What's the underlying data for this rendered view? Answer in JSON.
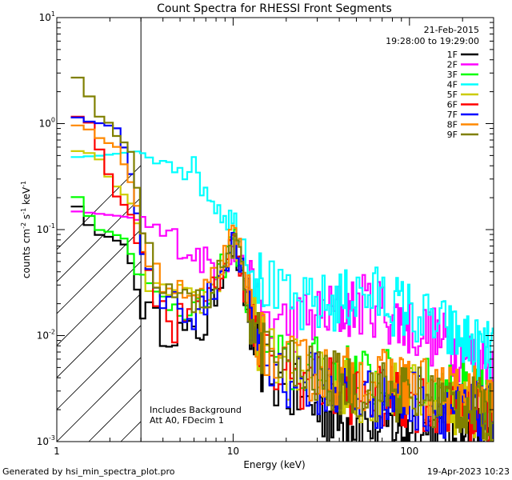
{
  "chart_data": {
    "type": "line",
    "title": "Count Spectra for RHESSI Front Segments",
    "xlabel": "Energy (keV)",
    "ylabel_parts": [
      "counts cm",
      "-2",
      " s",
      "-1",
      " keV",
      "-1"
    ],
    "x_scale": "log",
    "y_scale": "log",
    "xlim": [
      1,
      300
    ],
    "ylim": [
      0.001,
      10
    ],
    "x_ticks": [
      {
        "value": 1,
        "label": "1"
      },
      {
        "value": 10,
        "label": "10"
      },
      {
        "value": 100,
        "label": "100"
      }
    ],
    "y_ticks": [
      {
        "value": 10,
        "base": "10",
        "exp": "1"
      },
      {
        "value": 1,
        "base": "10",
        "exp": "0"
      },
      {
        "value": 0.1,
        "base": "10",
        "exp": "-1"
      },
      {
        "value": 0.01,
        "base": "10",
        "exp": "-2"
      },
      {
        "value": 0.001,
        "base": "10",
        "exp": "-3"
      }
    ],
    "date": "21-Feb-2015",
    "time_range": "19:28:00 to 19:29:00",
    "hatched_below_keV": 3,
    "notes": [
      "Includes Background",
      "Att A0, FDecim 1"
    ],
    "series": [
      {
        "name": "1F",
        "color": "#000000",
        "points": [
          [
            1.2,
            0.22
          ],
          [
            1.4,
            0.13
          ],
          [
            1.7,
            0.09
          ],
          [
            2.0,
            0.085
          ],
          [
            2.5,
            0.07
          ],
          [
            2.8,
            0.03
          ],
          [
            3.0,
            0.02
          ],
          [
            3.5,
            0.015
          ],
          [
            4.0,
            0.011
          ],
          [
            5.0,
            0.011
          ],
          [
            6.0,
            0.01
          ],
          [
            7.0,
            0.012
          ],
          [
            8.0,
            0.025
          ],
          [
            9.0,
            0.05
          ],
          [
            10.0,
            0.07
          ],
          [
            11.0,
            0.04
          ],
          [
            12.0,
            0.015
          ],
          [
            14.0,
            0.006
          ],
          [
            17.0,
            0.004
          ],
          [
            20.0,
            0.003
          ],
          [
            25.0,
            0.0025
          ],
          [
            30.0,
            0.002
          ],
          [
            40.0,
            0.0016
          ],
          [
            50.0,
            0.0015
          ],
          [
            70.0,
            0.0014
          ],
          [
            100.0,
            0.0013
          ],
          [
            150.0,
            0.0012
          ],
          [
            200.0,
            0.0012
          ],
          [
            250.0,
            0.0012
          ],
          [
            300.0,
            0.0011
          ]
        ]
      },
      {
        "name": "2F",
        "color": "#ff00ff",
        "points": [
          [
            1.2,
            0.15
          ],
          [
            1.5,
            0.145
          ],
          [
            1.8,
            0.14
          ],
          [
            2.2,
            0.135
          ],
          [
            2.6,
            0.13
          ],
          [
            3.0,
            0.12
          ],
          [
            3.5,
            0.1
          ],
          [
            4.0,
            0.09
          ],
          [
            5.0,
            0.075
          ],
          [
            6.0,
            0.06
          ],
          [
            7.0,
            0.05
          ],
          [
            8.0,
            0.045
          ],
          [
            9.0,
            0.05
          ],
          [
            10.0,
            0.06
          ],
          [
            11.0,
            0.05
          ],
          [
            12.0,
            0.03
          ],
          [
            14.0,
            0.018
          ],
          [
            17.0,
            0.013
          ],
          [
            20.0,
            0.013
          ],
          [
            25.0,
            0.014
          ],
          [
            30.0,
            0.015
          ],
          [
            40.0,
            0.017
          ],
          [
            50.0,
            0.019
          ],
          [
            60.0,
            0.02
          ],
          [
            70.0,
            0.018
          ],
          [
            80.0,
            0.015
          ],
          [
            100.0,
            0.012
          ],
          [
            120.0,
            0.011
          ],
          [
            150.0,
            0.009
          ],
          [
            200.0,
            0.007
          ],
          [
            250.0,
            0.0055
          ],
          [
            300.0,
            0.005
          ]
        ]
      },
      {
        "name": "3F",
        "color": "#00ff00",
        "points": [
          [
            1.2,
            0.25
          ],
          [
            1.4,
            0.17
          ],
          [
            1.7,
            0.1
          ],
          [
            2.0,
            0.095
          ],
          [
            2.5,
            0.08
          ],
          [
            2.8,
            0.04
          ],
          [
            3.0,
            0.032
          ],
          [
            3.5,
            0.025
          ],
          [
            4.0,
            0.022
          ],
          [
            5.0,
            0.02
          ],
          [
            6.0,
            0.018
          ],
          [
            7.0,
            0.02
          ],
          [
            8.0,
            0.03
          ],
          [
            9.0,
            0.05
          ],
          [
            10.0,
            0.09
          ],
          [
            11.0,
            0.05
          ],
          [
            12.0,
            0.02
          ],
          [
            14.0,
            0.01
          ],
          [
            17.0,
            0.006
          ],
          [
            20.0,
            0.005
          ],
          [
            25.0,
            0.005
          ],
          [
            30.0,
            0.005
          ],
          [
            40.0,
            0.0045
          ],
          [
            50.0,
            0.004
          ],
          [
            70.0,
            0.0038
          ],
          [
            100.0,
            0.0035
          ],
          [
            150.0,
            0.003
          ],
          [
            200.0,
            0.0028
          ],
          [
            250.0,
            0.0025
          ],
          [
            300.0,
            0.0022
          ]
        ]
      },
      {
        "name": "4F",
        "color": "#00ffff",
        "points": [
          [
            1.2,
            0.48
          ],
          [
            1.5,
            0.49
          ],
          [
            1.8,
            0.5
          ],
          [
            2.2,
            0.52
          ],
          [
            2.6,
            0.54
          ],
          [
            3.0,
            0.55
          ],
          [
            3.5,
            0.52
          ],
          [
            4.0,
            0.5
          ],
          [
            5.0,
            0.45
          ],
          [
            6.0,
            0.35
          ],
          [
            7.0,
            0.25
          ],
          [
            8.0,
            0.18
          ],
          [
            9.0,
            0.14
          ],
          [
            10.0,
            0.12
          ],
          [
            11.0,
            0.1
          ],
          [
            12.0,
            0.06
          ],
          [
            14.0,
            0.035
          ],
          [
            17.0,
            0.025
          ],
          [
            20.0,
            0.02
          ],
          [
            25.0,
            0.018
          ],
          [
            30.0,
            0.019
          ],
          [
            40.0,
            0.021
          ],
          [
            50.0,
            0.023
          ],
          [
            60.0,
            0.024
          ],
          [
            70.0,
            0.023
          ],
          [
            80.0,
            0.02
          ],
          [
            100.0,
            0.017
          ],
          [
            120.0,
            0.014
          ],
          [
            150.0,
            0.012
          ],
          [
            200.0,
            0.009
          ],
          [
            250.0,
            0.0075
          ],
          [
            300.0,
            0.0065
          ]
        ]
      },
      {
        "name": "5F",
        "color": "#cccc00",
        "points": [
          [
            1.2,
            0.55
          ],
          [
            1.4,
            0.55
          ],
          [
            1.7,
            0.5
          ],
          [
            2.0,
            0.3
          ],
          [
            2.5,
            0.2
          ],
          [
            2.8,
            0.15
          ],
          [
            3.0,
            0.05
          ],
          [
            3.5,
            0.03
          ],
          [
            4.0,
            0.025
          ],
          [
            5.0,
            0.022
          ],
          [
            6.0,
            0.02
          ],
          [
            7.0,
            0.022
          ],
          [
            8.0,
            0.03
          ],
          [
            9.0,
            0.05
          ],
          [
            10.0,
            0.08
          ],
          [
            11.0,
            0.05
          ],
          [
            12.0,
            0.02
          ],
          [
            14.0,
            0.009
          ],
          [
            17.0,
            0.006
          ],
          [
            20.0,
            0.005
          ],
          [
            25.0,
            0.0045
          ],
          [
            30.0,
            0.004
          ],
          [
            40.0,
            0.0035
          ],
          [
            50.0,
            0.003
          ],
          [
            70.0,
            0.003
          ],
          [
            100.0,
            0.0028
          ],
          [
            150.0,
            0.0025
          ],
          [
            200.0,
            0.0022
          ],
          [
            250.0,
            0.002
          ],
          [
            300.0,
            0.0018
          ]
        ]
      },
      {
        "name": "6F",
        "color": "#ff0000",
        "points": [
          [
            1.2,
            1.2
          ],
          [
            1.5,
            1.1
          ],
          [
            1.8,
            0.5
          ],
          [
            2.2,
            0.2
          ],
          [
            2.6,
            0.15
          ],
          [
            3.0,
            0.05
          ],
          [
            3.5,
            0.03
          ],
          [
            4.0,
            0.02
          ],
          [
            4.5,
            0.008
          ],
          [
            5.0,
            0.02
          ],
          [
            6.0,
            0.018
          ],
          [
            7.0,
            0.02
          ],
          [
            8.0,
            0.03
          ],
          [
            9.0,
            0.05
          ],
          [
            10.0,
            0.08
          ],
          [
            11.0,
            0.05
          ],
          [
            12.0,
            0.02
          ],
          [
            14.0,
            0.008
          ],
          [
            17.0,
            0.005
          ],
          [
            20.0,
            0.004
          ],
          [
            25.0,
            0.004
          ],
          [
            30.0,
            0.0035
          ],
          [
            40.0,
            0.003
          ],
          [
            50.0,
            0.0028
          ],
          [
            70.0,
            0.0026
          ],
          [
            100.0,
            0.0025
          ],
          [
            150.0,
            0.0022
          ],
          [
            200.0,
            0.002
          ],
          [
            250.0,
            0.0018
          ],
          [
            300.0,
            0.0016
          ]
        ]
      },
      {
        "name": "7F",
        "color": "#0000ff",
        "points": [
          [
            1.2,
            1.2
          ],
          [
            1.5,
            1.05
          ],
          [
            1.8,
            1.0
          ],
          [
            2.0,
            0.95
          ],
          [
            2.2,
            0.9
          ],
          [
            2.5,
            0.5
          ],
          [
            2.8,
            0.2
          ],
          [
            3.0,
            0.05
          ],
          [
            3.5,
            0.03
          ],
          [
            4.0,
            0.022
          ],
          [
            5.0,
            0.02
          ],
          [
            6.0,
            0.015
          ],
          [
            7.0,
            0.02
          ],
          [
            8.0,
            0.03
          ],
          [
            9.0,
            0.05
          ],
          [
            10.0,
            0.08
          ],
          [
            11.0,
            0.05
          ],
          [
            12.0,
            0.02
          ],
          [
            14.0,
            0.008
          ],
          [
            17.0,
            0.005
          ],
          [
            20.0,
            0.004
          ],
          [
            25.0,
            0.004
          ],
          [
            30.0,
            0.0035
          ],
          [
            40.0,
            0.003
          ],
          [
            50.0,
            0.0028
          ],
          [
            70.0,
            0.0025
          ],
          [
            100.0,
            0.0025
          ],
          [
            150.0,
            0.0022
          ],
          [
            200.0,
            0.002
          ],
          [
            250.0,
            0.0018
          ],
          [
            300.0,
            0.0016
          ]
        ]
      },
      {
        "name": "8F",
        "color": "#ff8800",
        "points": [
          [
            1.2,
            1.0
          ],
          [
            1.5,
            0.9
          ],
          [
            1.8,
            0.7
          ],
          [
            2.2,
            0.6
          ],
          [
            2.6,
            0.3
          ],
          [
            3.0,
            0.12
          ],
          [
            3.5,
            0.04
          ],
          [
            4.0,
            0.03
          ],
          [
            5.0,
            0.025
          ],
          [
            6.0,
            0.022
          ],
          [
            7.0,
            0.025
          ],
          [
            8.0,
            0.035
          ],
          [
            9.0,
            0.055
          ],
          [
            10.0,
            0.085
          ],
          [
            11.0,
            0.06
          ],
          [
            12.0,
            0.025
          ],
          [
            14.0,
            0.01
          ],
          [
            17.0,
            0.006
          ],
          [
            20.0,
            0.005
          ],
          [
            25.0,
            0.005
          ],
          [
            30.0,
            0.0045
          ],
          [
            40.0,
            0.004
          ],
          [
            50.0,
            0.004
          ],
          [
            70.0,
            0.0038
          ],
          [
            100.0,
            0.0035
          ],
          [
            150.0,
            0.003
          ],
          [
            200.0,
            0.0028
          ],
          [
            250.0,
            0.0025
          ],
          [
            300.0,
            0.0022
          ]
        ]
      },
      {
        "name": "9F",
        "color": "#808000",
        "points": [
          [
            1.2,
            3.0
          ],
          [
            1.4,
            2.5
          ],
          [
            1.7,
            1.2
          ],
          [
            2.0,
            1.0
          ],
          [
            2.2,
            0.75
          ],
          [
            2.6,
            0.6
          ],
          [
            3.0,
            0.15
          ],
          [
            3.5,
            0.04
          ],
          [
            4.0,
            0.025
          ],
          [
            5.0,
            0.022
          ],
          [
            6.0,
            0.02
          ],
          [
            7.0,
            0.022
          ],
          [
            8.0,
            0.032
          ],
          [
            9.0,
            0.05
          ],
          [
            10.0,
            0.075
          ],
          [
            11.0,
            0.05
          ],
          [
            12.0,
            0.02
          ],
          [
            14.0,
            0.009
          ],
          [
            17.0,
            0.006
          ],
          [
            20.0,
            0.005
          ],
          [
            25.0,
            0.0045
          ],
          [
            30.0,
            0.004
          ],
          [
            40.0,
            0.0035
          ],
          [
            50.0,
            0.0032
          ],
          [
            70.0,
            0.003
          ],
          [
            100.0,
            0.0028
          ],
          [
            150.0,
            0.0025
          ],
          [
            200.0,
            0.0022
          ],
          [
            250.0,
            0.002
          ],
          [
            300.0,
            0.0018
          ]
        ]
      }
    ]
  },
  "footer": {
    "generated_by": "Generated by hsi_min_spectra_plot.pro",
    "timestamp": "19-Apr-2023 10:23"
  }
}
